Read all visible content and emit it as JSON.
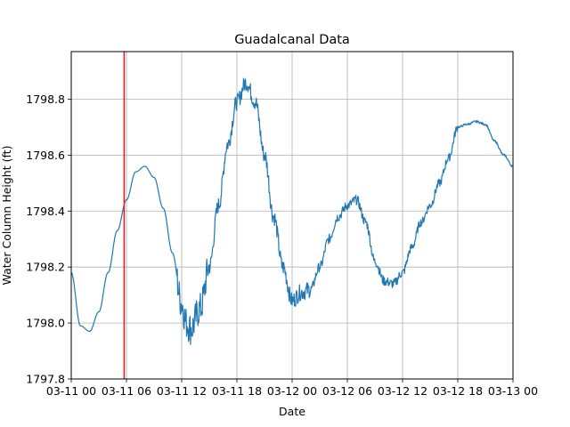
{
  "chart_data": {
    "type": "line",
    "title": "Guadalcanal Data",
    "xlabel": "Date",
    "ylabel": "Water Column Height (ft)",
    "xlim": [
      "03-11 00",
      "03-13 00"
    ],
    "ylim": [
      1797.8,
      1798.97
    ],
    "x_ticks": [
      "03-11 00",
      "03-11 06",
      "03-11 12",
      "03-11 18",
      "03-12 00",
      "03-12 06",
      "03-12 12",
      "03-12 18",
      "03-13 00"
    ],
    "x_tick_hours": [
      0,
      6,
      12,
      18,
      24,
      30,
      36,
      42,
      48
    ],
    "y_ticks": [
      "1797.8",
      "1798.0",
      "1798.2",
      "1798.4",
      "1798.6",
      "1798.8"
    ],
    "y_tick_values": [
      1797.8,
      1798.0,
      1798.2,
      1798.4,
      1798.6,
      1798.8
    ],
    "grid": true,
    "series": [
      {
        "color": "#1f77b4",
        "x_hours": [
          0,
          1,
          2,
          3,
          4,
          5,
          6,
          7,
          8,
          9,
          10,
          11,
          12,
          12.5,
          13,
          14,
          15,
          16,
          17,
          18,
          19,
          20,
          21,
          22,
          23,
          24,
          25,
          26,
          27,
          28,
          29,
          30,
          31,
          32,
          33,
          34,
          35,
          36,
          37,
          38,
          39,
          40,
          41,
          42,
          43,
          44,
          45,
          46,
          47,
          48
        ],
        "values": [
          1798.18,
          1797.99,
          1797.97,
          1798.04,
          1798.18,
          1798.33,
          1798.44,
          1798.54,
          1798.56,
          1798.52,
          1798.41,
          1798.25,
          1798.07,
          1798.0,
          1797.98,
          1798.05,
          1798.2,
          1798.42,
          1798.64,
          1798.79,
          1798.86,
          1798.79,
          1798.6,
          1798.38,
          1798.2,
          1798.08,
          1798.11,
          1798.12,
          1798.2,
          1798.3,
          1798.38,
          1798.42,
          1798.44,
          1798.36,
          1798.22,
          1798.15,
          1798.14,
          1798.18,
          1798.27,
          1798.36,
          1798.42,
          1798.5,
          1798.59,
          1798.7,
          1798.71,
          1798.72,
          1798.71,
          1798.65,
          1798.6,
          1798.56
        ]
      }
    ],
    "vline": {
      "x_hour": 5.75,
      "color": "#d62728"
    }
  }
}
